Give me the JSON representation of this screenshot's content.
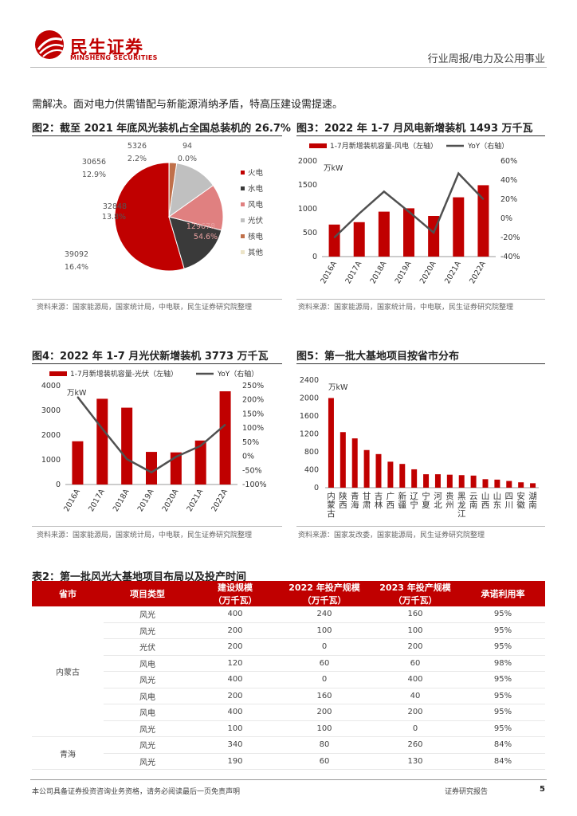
{
  "header": {
    "brand_cn": "民生证券",
    "brand_en": "MINSHENG SECURITIES",
    "section": "行业周报/电力及公用事业"
  },
  "intro_text": "需解决。面对电力供需错配与新能源消纳矛盾，特高压建设需提速。",
  "colors": {
    "red": "#c00000",
    "dark": "#3a3a3a",
    "pink": "#e08080",
    "light": "#c0c0c0",
    "orange": "#c0704a",
    "beige": "#ece4c8"
  },
  "figures": {
    "fig2": {
      "title": "图2：截至 2021 年底风光装机占全国总装机的 26.7%",
      "source": "资料来源：国家能源局，国家统计局，中电联，民生证券研究院整理"
    },
    "fig3": {
      "title": "图3：2022 年 1-7 月风电新增装机 1493 万千瓦",
      "source": "资料来源：国家能源局，国家统计局，中电联，民生证券研究院整理"
    },
    "fig4": {
      "title": "图4：2022 年 1-7 月光伏新增装机 3773 万千瓦",
      "source": "资料来源：国家能源局，国家统计局，中电联，民生证券研究院整理"
    },
    "fig5": {
      "title": "图5：第一批大基地项目按省市分布",
      "source": "资料来源：国家发改委，国家能源局，民生证券研究院整理"
    }
  },
  "chart_data": [
    {
      "type": "pie",
      "slices": [
        {
          "name": "火电",
          "value": 129678,
          "pct": "54.6%",
          "color": "#c00000"
        },
        {
          "name": "水电",
          "value": 39092,
          "pct": "16.4%",
          "color": "#3a3a3a"
        },
        {
          "name": "风电",
          "value": 32848,
          "pct": "13.8%",
          "color": "#e08080"
        },
        {
          "name": "光伏",
          "value": 30656,
          "pct": "12.9%",
          "color": "#c0c0c0"
        },
        {
          "name": "核电",
          "value": 5326,
          "pct": "2.2%",
          "color": "#c0704a"
        },
        {
          "name": "其他",
          "value": 94,
          "pct": "0.0%",
          "color": "#ece4c8"
        }
      ],
      "value_labels": [
        "129678",
        "39092",
        "32848",
        "30656",
        "5326",
        "94"
      ],
      "pct_labels": [
        "54.6%",
        "16.4%",
        "13.8%",
        "12.9%",
        "2.2%",
        "0.0%"
      ],
      "legend": [
        "火电",
        "水电",
        "风电",
        "光伏",
        "核电",
        "其他"
      ]
    },
    {
      "type": "bar",
      "categories": [
        "2016A",
        "2017A",
        "2018A",
        "2019A",
        "2020A",
        "2021A",
        "2022A"
      ],
      "series": [
        {
          "name": "1-7月新增装机容量-风电（左轴）",
          "values": [
            670,
            720,
            940,
            1010,
            850,
            1240,
            1493
          ]
        },
        {
          "name": "YoY（右轴）",
          "values": [
            -20,
            5,
            28,
            7,
            -15,
            47,
            20
          ]
        }
      ],
      "unit": "万kW",
      "ylim": [
        0,
        2000
      ],
      "yticks": [
        "0",
        "500",
        "1000",
        "1500",
        "2000"
      ],
      "y2lim": [
        -40,
        60
      ],
      "y2ticks": [
        "-40%",
        "-20%",
        "0%",
        "20%",
        "40%",
        "60%"
      ]
    },
    {
      "type": "bar",
      "categories": [
        "2016A",
        "2017A",
        "2018A",
        "2019A",
        "2020A",
        "2021A",
        "2022A"
      ],
      "series": [
        {
          "name": "1-7月新增装机容量-光伏（左轴）",
          "values": [
            1750,
            3470,
            3110,
            1320,
            1300,
            1780,
            3773
          ]
        },
        {
          "name": "YoY（右轴）",
          "values": [
            210,
            98,
            -10,
            -57,
            -2,
            37,
            112
          ]
        }
      ],
      "unit": "万kW",
      "ylim": [
        0,
        4000
      ],
      "yticks": [
        "0",
        "1000",
        "2000",
        "3000",
        "4000"
      ],
      "y2lim": [
        -100,
        250
      ],
      "y2ticks": [
        "-100%",
        "-50%",
        "0%",
        "50%",
        "100%",
        "150%",
        "200%",
        "250%"
      ]
    },
    {
      "type": "bar",
      "categories": [
        "内蒙古",
        "陕西",
        "青海",
        "甘肃",
        "吉林",
        "广西",
        "新疆",
        "辽宁",
        "宁夏",
        "河北",
        "贵州",
        "黑龙江",
        "云南",
        "山西",
        "山东",
        "四川",
        "安徽",
        "湖南"
      ],
      "values": [
        2000,
        1240,
        1100,
        840,
        750,
        580,
        530,
        410,
        300,
        300,
        290,
        280,
        270,
        190,
        180,
        150,
        120,
        100
      ],
      "unit": "万kW",
      "ylim": [
        0,
        2400
      ],
      "yticks": [
        "0",
        "400",
        "800",
        "1200",
        "1600",
        "2000",
        "2400"
      ]
    }
  ],
  "table": {
    "title": "表2：第一批风光大基地项目布局以及投产时间",
    "headers": [
      "省市",
      "项目类型",
      "建设规模",
      "（万千瓦）",
      "2022 年投产规模",
      "（万千瓦）",
      "2023 年投产规模",
      "（万千瓦）",
      "承诺利用率"
    ],
    "group1_province": "内蒙古",
    "group2_province": "青海",
    "rows": [
      [
        "风光",
        "400",
        "240",
        "160",
        "95%"
      ],
      [
        "风光",
        "200",
        "100",
        "100",
        "95%"
      ],
      [
        "光伏",
        "200",
        "0",
        "200",
        "95%"
      ],
      [
        "风电",
        "120",
        "60",
        "60",
        "98%"
      ],
      [
        "风光",
        "400",
        "0",
        "400",
        "95%"
      ],
      [
        "风电",
        "200",
        "160",
        "40",
        "95%"
      ],
      [
        "风电",
        "400",
        "200",
        "200",
        "95%"
      ],
      [
        "风光",
        "100",
        "100",
        "0",
        "95%"
      ],
      [
        "风光",
        "340",
        "80",
        "260",
        "84%"
      ],
      [
        "风光",
        "190",
        "60",
        "130",
        "84%"
      ]
    ]
  },
  "footer": {
    "disclaimer": "本公司具备证券投资咨询业务资格，请务必阅读最后一页免责声明",
    "report_type": "证券研究报告",
    "page": "5"
  }
}
